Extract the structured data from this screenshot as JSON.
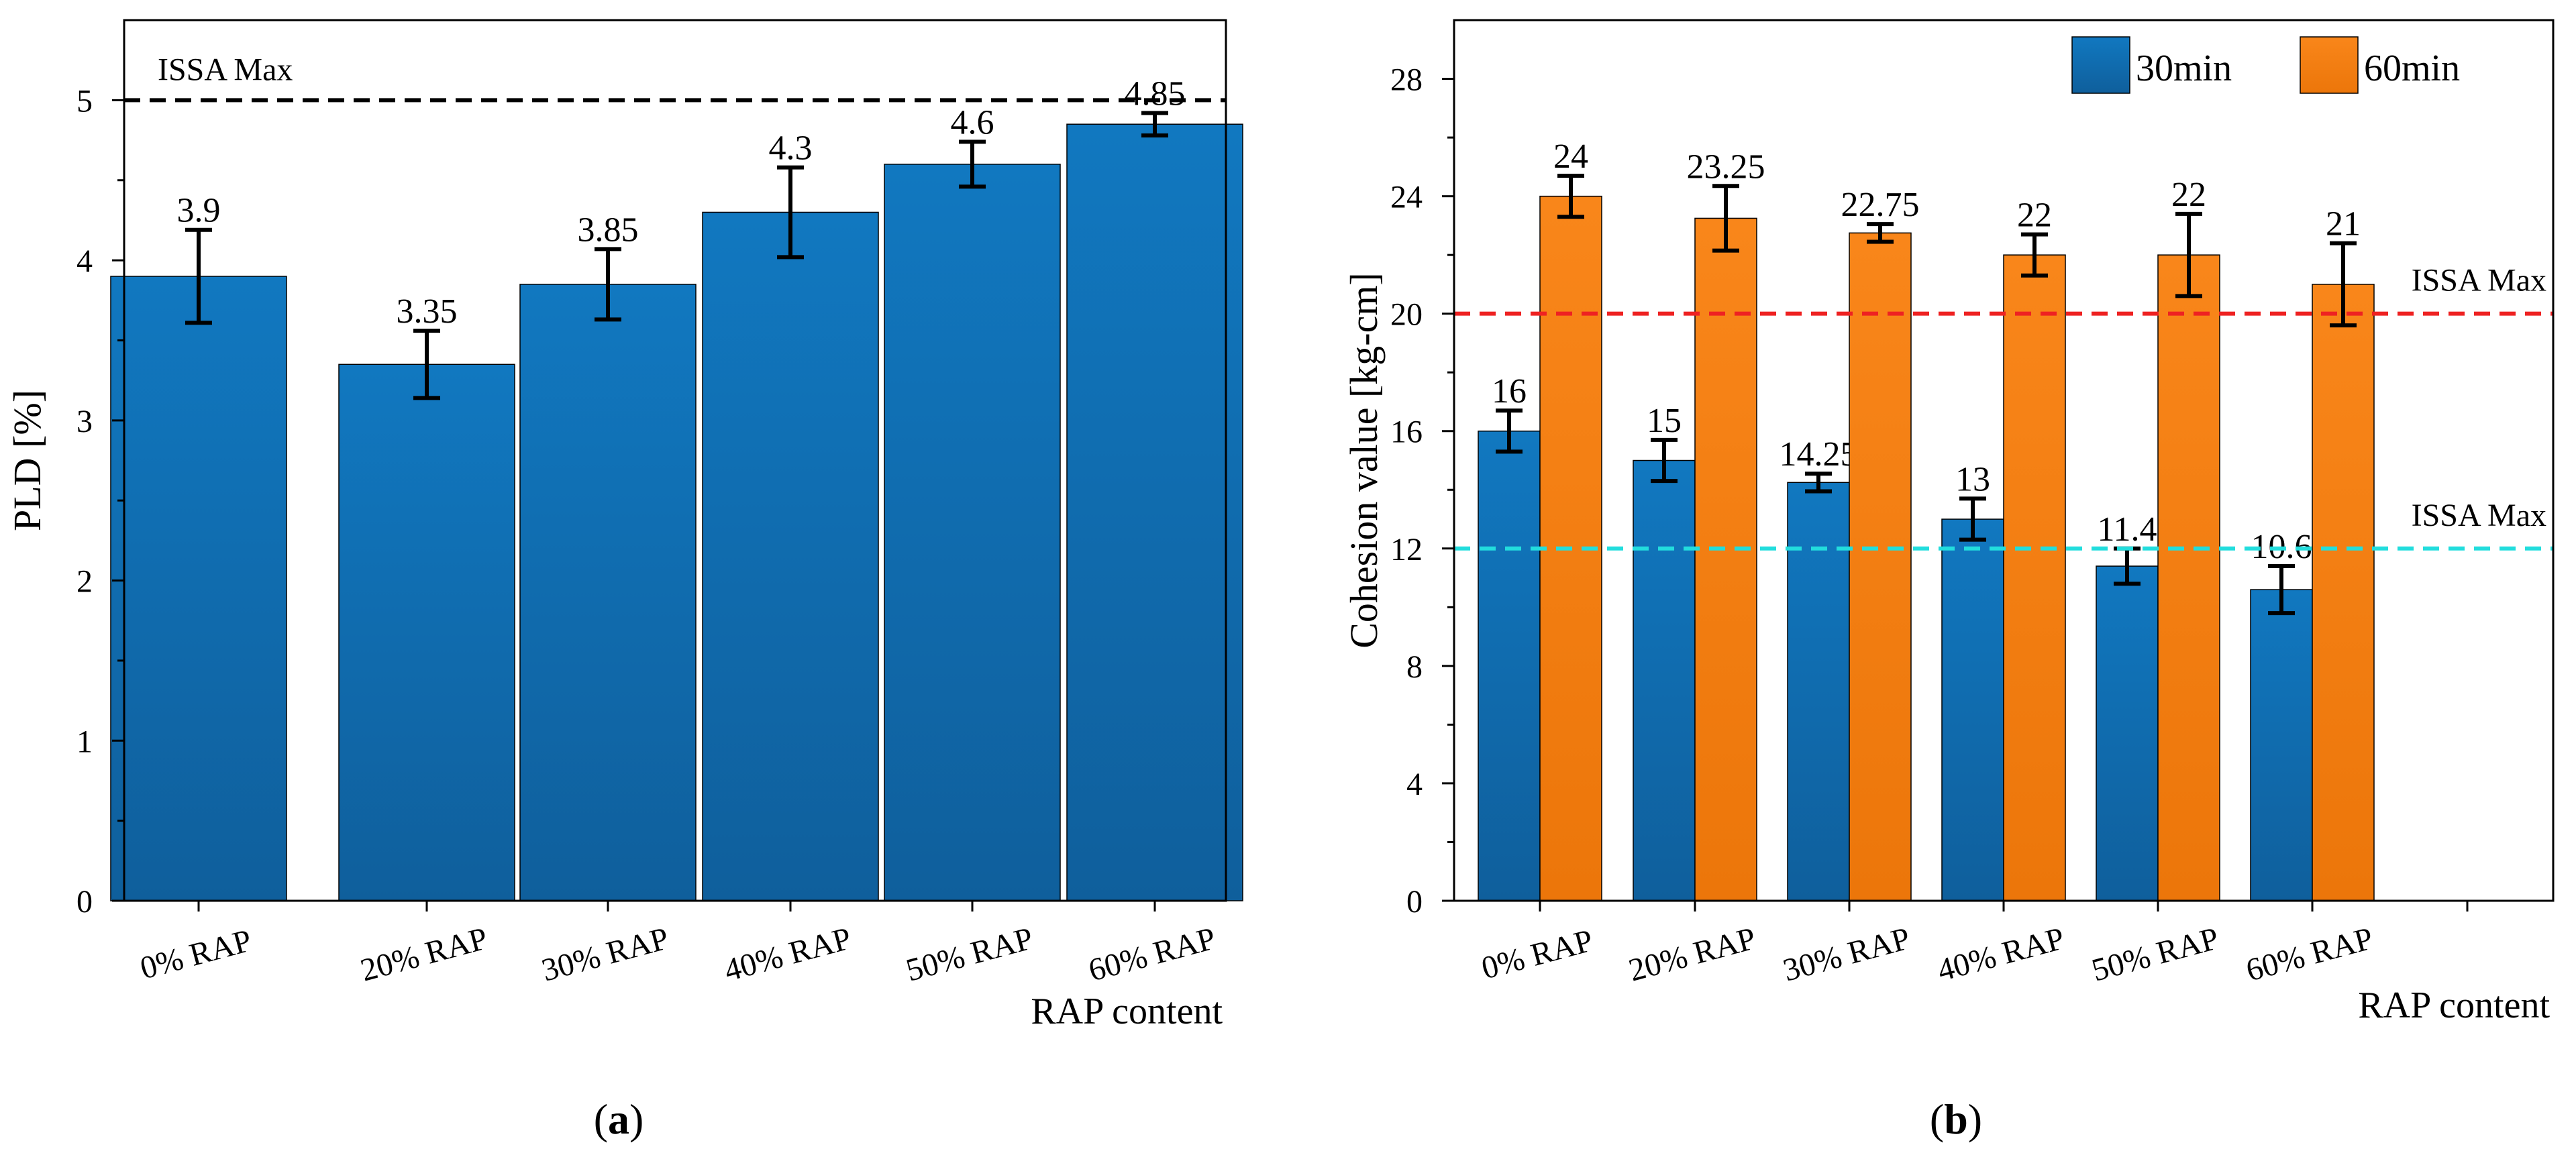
{
  "chart_data": [
    {
      "panel_label": "a",
      "type": "bar",
      "categories": [
        "0% RAP",
        "20% RAP",
        "30% RAP",
        "40% RAP",
        "50% RAP",
        "60% RAP"
      ],
      "series": [
        {
          "name": "PLD",
          "values": [
            3.9,
            3.35,
            3.85,
            4.3,
            4.6,
            4.85
          ],
          "errors": [
            0.29,
            0.21,
            0.22,
            0.28,
            0.14,
            0.07
          ],
          "labels": [
            "3.9",
            "3.35",
            "3.85",
            "4.3",
            "4.6",
            "4.85"
          ],
          "color": "#1272b6"
        }
      ],
      "xlabel": "RAP content",
      "ylabel": "PLD [%]",
      "ylim": [
        0,
        5.5
      ],
      "yticks": [
        "0",
        "1",
        "2",
        "3",
        "4",
        "5"
      ],
      "reference_lines": [
        {
          "label": "ISSA Max",
          "value": 5,
          "color": "#000000"
        }
      ]
    },
    {
      "panel_label": "b",
      "type": "bar",
      "categories": [
        "0% RAP",
        "20% RAP",
        "30% RAP",
        "40% RAP",
        "50% RAP",
        "60% RAP"
      ],
      "series": [
        {
          "name": "30min",
          "values": [
            16,
            15,
            14.25,
            13,
            11.4,
            10.6
          ],
          "errors": [
            0.7,
            0.7,
            0.3,
            0.7,
            0.6,
            0.8
          ],
          "labels": [
            "16",
            "15",
            "14.25",
            "13",
            "11.4",
            "10.6"
          ],
          "color": "#1272b6"
        },
        {
          "name": "60min",
          "values": [
            24,
            23.25,
            22.75,
            22,
            22,
            21
          ],
          "errors": [
            0.7,
            1.1,
            0.3,
            0.7,
            1.4,
            1.4
          ],
          "labels": [
            "24",
            "23.25",
            "22.75",
            "22",
            "22",
            "21"
          ],
          "color": "#f57f12"
        }
      ],
      "xlabel": "RAP content",
      "ylabel": "Cohesion value [kg-cm]",
      "ylim": [
        0,
        30
      ],
      "yticks": [
        "0",
        "4",
        "8",
        "12",
        "16",
        "20",
        "24",
        "28"
      ],
      "reference_lines": [
        {
          "label": "ISSA Max",
          "value": 20,
          "color": "#ee2222"
        },
        {
          "label": "ISSA Max",
          "value": 12,
          "color": "#22dddd"
        }
      ],
      "legend_position": "top-right"
    }
  ]
}
